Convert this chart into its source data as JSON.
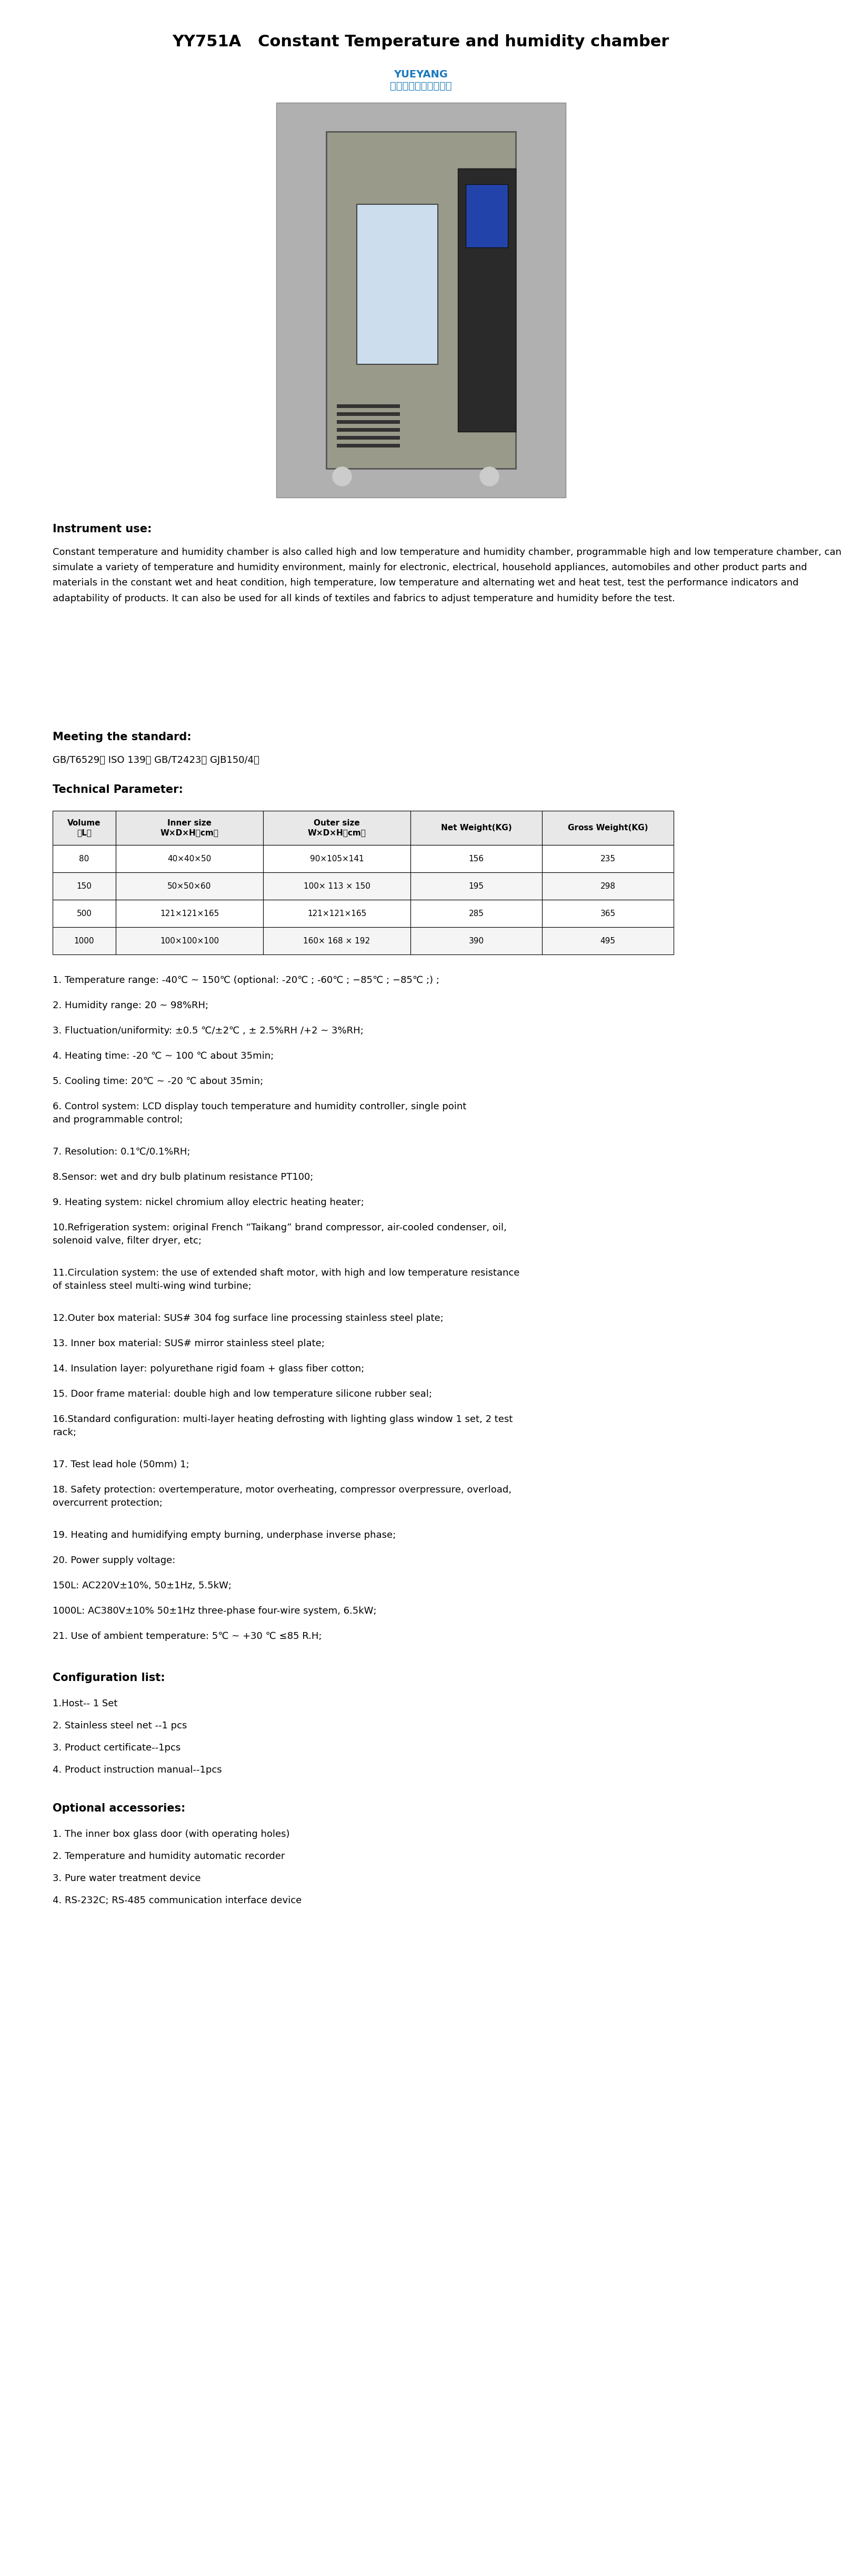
{
  "title": "YY751A   Constant Temperature and humidity chamber",
  "title_fontsize": 22,
  "title_fontweight": "bold",
  "bg_color": "#ffffff",
  "text_color": "#000000",
  "section_heading_fontsize": 15,
  "body_fontsize": 13,
  "table_fontsize": 12,
  "instrument_use_heading": "Instrument use:",
  "instrument_use_body": "Constant temperature and humidity chamber is also called high and low temperature and humidity chamber, programmable high and low temperature chamber, can simulate a variety of temperature and humidity environment, mainly for electronic, electrical, household appliances, automobiles and other product parts and materials in the constant wet and heat condition, high temperature, low temperature and alternating wet and heat test, test the performance indicators and adaptability of products. It can also be used for all kinds of textiles and fabrics to adjust temperature and humidity before the test.",
  "meeting_standard_heading": "Meeting the standard:",
  "meeting_standard_body": "GB/T6529； ISO 139； GB/T2423； GJB150/4；",
  "technical_param_heading": "Technical Parameter:",
  "table_headers": [
    "Volume\n（L）",
    "Inner size\nW×D×H（cm）",
    "Outer size\nW×D×H（cm）",
    "Net Weight(KG)",
    "Gross Weight(KG)"
  ],
  "table_rows": [
    [
      "80",
      "40×40×50",
      "90×105×141",
      "156",
      "235"
    ],
    [
      "150",
      "50×50×60",
      "100× 113 × 150",
      "195",
      "298"
    ],
    [
      "500",
      "121×121×165",
      "121×121×165",
      "285",
      "365"
    ],
    [
      "1000",
      "100×100×100",
      "160× 168 × 192",
      "390",
      "495"
    ]
  ],
  "specs": [
    "1. Temperature range: -40℃ ~ 150℃ (optional: -20℃ ; -60℃ ; −85℃ ; −85℃ ;) ;",
    "2. Humidity range: 20 ~ 98%RH;",
    "3. Fluctuation/uniformity: ±0.5 ℃/±2℃ , ± 2.5%RH /+2 ~ 3%RH;",
    "4. Heating time: -20 ℃ ~ 100 ℃ about 35min;",
    "5. Cooling time: 20℃ ~ -20 ℃ about 35min;",
    "6. Control system: LCD display touch temperature and humidity controller, single point\nand programmable control;",
    "7. Resolution: 0.1℃/0.1%RH;",
    "8.Sensor: wet and dry bulb platinum resistance PT100;",
    "9. Heating system: nickel chromium alloy electric heating heater;",
    "10.Refrigeration system: original French “Taikang” brand compressor, air-cooled condenser, oil,\nsolenoid valve, filter dryer, etc;",
    "11.Circulation system: the use of extended shaft motor, with high and low temperature resistance\nof stainless steel multi-wing wind turbine;",
    "12.Outer box material: SUS# 304 fog surface line processing stainless steel plate;",
    "13. Inner box material: SUS# mirror stainless steel plate;",
    "14. Insulation layer: polyurethane rigid foam + glass fiber cotton;",
    "15. Door frame material: double high and low temperature silicone rubber seal;",
    "16.Standard configuration: multi-layer heating defrosting with lighting glass window 1 set, 2 test\nrack;",
    "17. Test lead hole (50mm) 1;",
    "18. Safety protection: overtemperature, motor overheating, compressor overpressure, overload,\novercurrent protection;",
    "19. Heating and humidifying empty burning, underphase inverse phase;",
    "20. Power supply voltage:",
    "150L: AC220V±10%, 50±1Hz, 5.5kW;",
    "1000L: AC380V±10% 50±1Hz three-phase four-wire system, 6.5kW;",
    "21. Use of ambient temperature: 5℃ ~ +30 ℃ ≤85 R.H;"
  ],
  "config_heading": "Configuration list:",
  "config_items": [
    "1.Host-- 1 Set",
    "2. Stainless steel net --1 pcs",
    "3. Product certificate--1pcs",
    "4. Product instruction manual--1pcs"
  ],
  "optional_heading": "Optional accessories:",
  "optional_items": [
    "1. The inner box glass door (with operating holes)",
    "2. Temperature and humidity automatic recorder",
    "3. Pure water treatment device",
    "4. RS-232C; RS-485 communication interface device"
  ]
}
